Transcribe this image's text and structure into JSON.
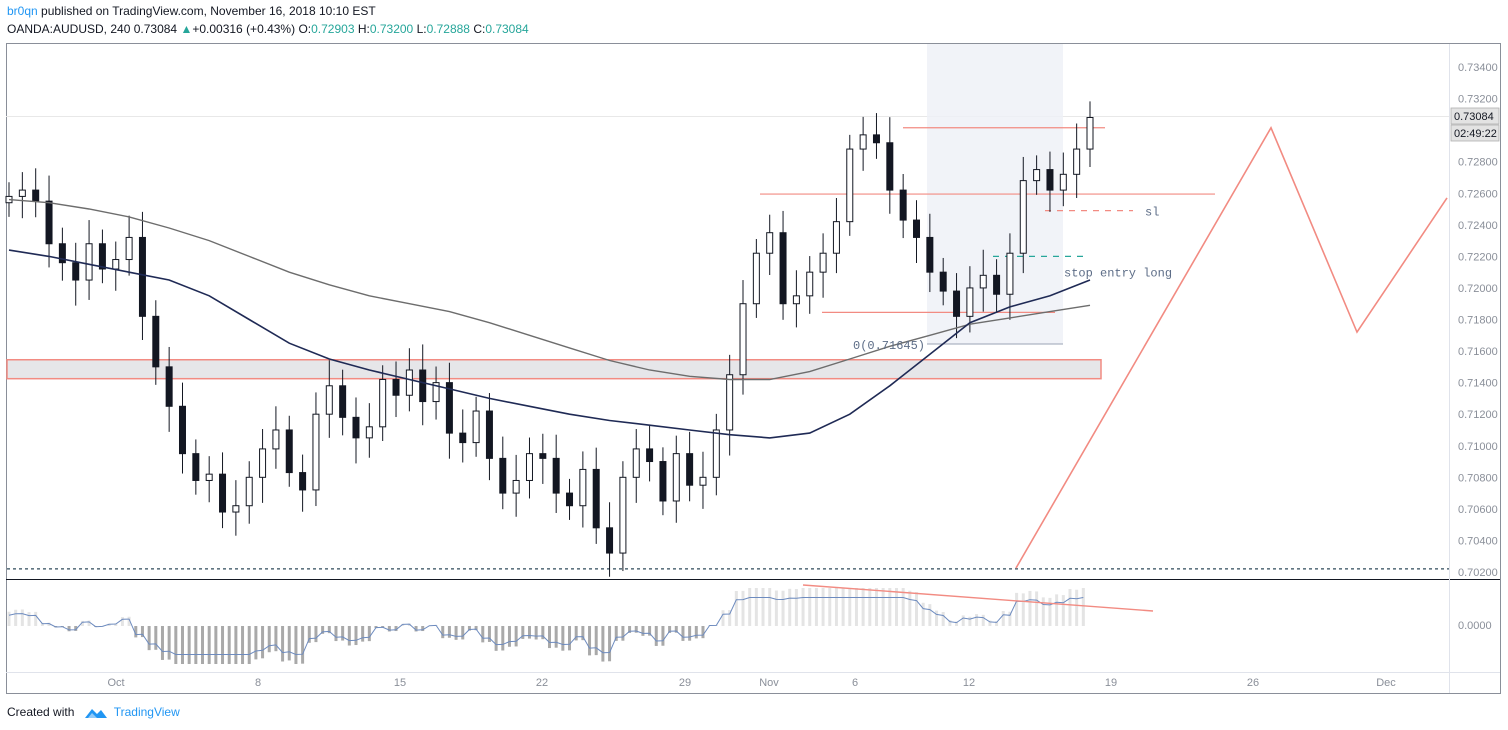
{
  "header": {
    "user": "br0qn",
    "published": " published on TradingView.com, November 16, 2018 10:10 EST",
    "symbol": "OANDA:AUDUSD, 240",
    "last": "0.73084",
    "change": "+0.00316 (+0.43%)",
    "o_label": "O:",
    "o_value": "0.72903",
    "h_label": "H:",
    "h_value": "0.73200",
    "l_label": "L:",
    "l_value": "0.72888",
    "c_label": "C:",
    "c_value": "0.73084"
  },
  "footer": {
    "created": "Created with",
    "brand": "TradingView"
  },
  "colors": {
    "up": "#26a69a",
    "line": "#f28b82",
    "ma_fast": "#1f2a55",
    "ma_slow": "#6d6d6d",
    "zone": "#e6e6e9"
  },
  "chart_data": {
    "type": "line",
    "title": "",
    "y_axis": {
      "ticks": [
        "0.73400",
        "0.73200",
        "0.73000",
        "0.72800",
        "0.72600",
        "0.72400",
        "0.72200",
        "0.72000",
        "0.71800",
        "0.71600",
        "0.71400",
        "0.71200",
        "0.71000",
        "0.70800",
        "0.70600",
        "0.70400",
        "0.70200"
      ],
      "range": [
        0.7015,
        0.7348
      ]
    },
    "x_axis": {
      "ticks": [
        "Oct",
        "8",
        "15",
        "22",
        "29",
        "Nov",
        "6",
        "12",
        "19",
        "26",
        "Dec"
      ]
    },
    "last_price_badge": "0.73084",
    "countdown_badge": "02:49:22",
    "oscillator_tick": "0.0000",
    "series": [
      {
        "name": "",
        "values": [
          0.7258,
          0.7262,
          0.7255,
          0.7228,
          0.7216,
          0.7205,
          0.7228,
          0.7212,
          0.7218,
          0.7232,
          0.7182,
          0.715,
          0.7125,
          0.7095,
          0.7078,
          0.7082,
          0.7058,
          0.7062,
          0.708,
          0.7098,
          0.711,
          0.7083,
          0.7072,
          0.712,
          0.7138,
          0.7118,
          0.7105,
          0.7112,
          0.7142,
          0.7132,
          0.7148,
          0.7128,
          0.714,
          0.7108,
          0.7102,
          0.7122,
          0.7092,
          0.707,
          0.7078,
          0.7095,
          0.7092,
          0.707,
          0.7062,
          0.7085,
          0.7048,
          0.7032,
          0.708,
          0.7098,
          0.709,
          0.7065,
          0.7095,
          0.7075,
          0.708,
          0.711,
          0.7145,
          0.719,
          0.7222,
          0.7235,
          0.719,
          0.7195,
          0.721,
          0.7222,
          0.7242,
          0.7288,
          0.7297,
          0.7292,
          0.7262,
          0.7243,
          0.7232,
          0.721,
          0.7198,
          0.7182,
          0.72,
          0.7208,
          0.7196,
          0.7222,
          0.7268,
          0.7275,
          0.7262,
          0.7272,
          0.7288,
          0.7308
        ]
      },
      {
        "name": "",
        "values": [
          0.7224,
          0.722,
          0.7215,
          0.721,
          0.7205,
          0.7195,
          0.718,
          0.7165,
          0.7155,
          0.7148,
          0.7142,
          0.7136,
          0.713,
          0.7125,
          0.712,
          0.7116,
          0.7113,
          0.711,
          0.7107,
          0.7105,
          0.7108,
          0.712,
          0.7138,
          0.7158,
          0.7178,
          0.7188,
          0.7195,
          0.7205
        ]
      },
      {
        "name": "",
        "values": [
          0.7256,
          0.7254,
          0.725,
          0.7245,
          0.7238,
          0.723,
          0.722,
          0.721,
          0.7202,
          0.7195,
          0.719,
          0.7185,
          0.7178,
          0.717,
          0.7162,
          0.7154,
          0.7148,
          0.7144,
          0.7142,
          0.7142,
          0.7147,
          0.7155,
          0.7163,
          0.717,
          0.7177,
          0.7181,
          0.7185,
          0.7189
        ]
      }
    ],
    "annotations": {
      "sl_label": "sl",
      "stop_entry_label": "stop entry long",
      "fib_label": "0(0.71645)",
      "support_zone": [
        0.71425,
        0.71545
      ],
      "resistance_level": 0.72595,
      "level_top": 0.73015,
      "level_low": 0.71845,
      "sl_level": 0.7249,
      "entry_level": 0.722,
      "bottom_level": 0.7022,
      "projection": [
        0.70225,
        0.73015,
        0.7172,
        0.7257
      ]
    }
  }
}
